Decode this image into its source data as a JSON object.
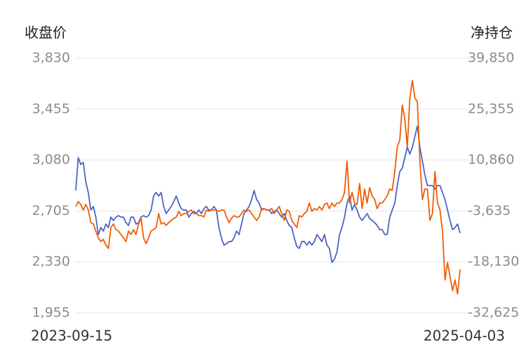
{
  "chart_data": {
    "type": "line",
    "categories": [
      "2023-09-15",
      null,
      null,
      null,
      null,
      null,
      null,
      null,
      null,
      null,
      null,
      null,
      null,
      null,
      null,
      null,
      null,
      null,
      null,
      null,
      null,
      null,
      null,
      null,
      null,
      null,
      null,
      null,
      null,
      null,
      null,
      null,
      null,
      null,
      null,
      null,
      null,
      null,
      null,
      null,
      null,
      null,
      null,
      null,
      null,
      null,
      null,
      null,
      null,
      null,
      null,
      null,
      null,
      null,
      null,
      null,
      null,
      null,
      null,
      null,
      null,
      null,
      null,
      null,
      null,
      null,
      null,
      null,
      null,
      null,
      null,
      null,
      null,
      null,
      null,
      null,
      null,
      null,
      null,
      null,
      null,
      null,
      null,
      null,
      null,
      null,
      null,
      null,
      null,
      null,
      null,
      null,
      null,
      null,
      null,
      null,
      null,
      null,
      null,
      null,
      null,
      null,
      null,
      null,
      null,
      null,
      null,
      null,
      null,
      null,
      null,
      null,
      null,
      null,
      null,
      null,
      null,
      null,
      null,
      null,
      null,
      null,
      null,
      null,
      null,
      null,
      null,
      null,
      null,
      null,
      null,
      null,
      null,
      null,
      null,
      null,
      null,
      null,
      null,
      null,
      null,
      null,
      null,
      null,
      null,
      null,
      null,
      null,
      null,
      null,
      null,
      null,
      null,
      "2025-04-03"
    ],
    "series": [
      {
        "name": "收盘价",
        "color": "#4e62c7",
        "axis": "y",
        "values": [
          2856,
          3098,
          3047,
          3062,
          2918,
          2841,
          2712,
          2738,
          2660,
          2532,
          2583,
          2557,
          2609,
          2583,
          2660,
          2635,
          2660,
          2671,
          2660,
          2660,
          2619,
          2599,
          2660,
          2660,
          2609,
          2619,
          2660,
          2671,
          2660,
          2671,
          2712,
          2815,
          2841,
          2815,
          2841,
          2738,
          2686,
          2712,
          2738,
          2774,
          2815,
          2763,
          2722,
          2712,
          2712,
          2660,
          2686,
          2702,
          2686,
          2712,
          2686,
          2722,
          2738,
          2712,
          2712,
          2738,
          2712,
          2583,
          2506,
          2454,
          2465,
          2480,
          2480,
          2506,
          2557,
          2532,
          2609,
          2686,
          2712,
          2738,
          2789,
          2856,
          2789,
          2763,
          2712,
          2722,
          2712,
          2712,
          2686,
          2702,
          2712,
          2686,
          2660,
          2686,
          2635,
          2599,
          2583,
          2506,
          2444,
          2429,
          2480,
          2480,
          2454,
          2480,
          2454,
          2480,
          2532,
          2506,
          2480,
          2532,
          2454,
          2429,
          2326,
          2351,
          2403,
          2532,
          2583,
          2660,
          2763,
          2815,
          2712,
          2753,
          2712,
          2660,
          2635,
          2660,
          2686,
          2650,
          2635,
          2619,
          2599,
          2568,
          2568,
          2532,
          2532,
          2660,
          2712,
          2763,
          2892,
          2995,
          3021,
          3098,
          3175,
          3124,
          3175,
          3253,
          3330,
          3175,
          3072,
          2969,
          2892,
          2892,
          2892,
          2866,
          2892,
          2892,
          2841,
          2789,
          2712,
          2635,
          2568,
          2583,
          2609,
          2542
        ]
      },
      {
        "name": "净持仓",
        "color": "#f25c05",
        "axis": "y2",
        "values": [
          -2360,
          -966,
          -1762,
          -3355,
          -1762,
          -3355,
          -6939,
          -7337,
          -9328,
          -11319,
          -12315,
          -11717,
          -13310,
          -14306,
          -8333,
          -7337,
          -8930,
          -9328,
          -10324,
          -11319,
          -12315,
          -9328,
          -10324,
          -8930,
          -10324,
          -7337,
          -5744,
          -11319,
          -12912,
          -11319,
          -9328,
          -8930,
          -8333,
          -4351,
          -7337,
          -6939,
          -7735,
          -6939,
          -6342,
          -5744,
          -5346,
          -3753,
          -4948,
          -4351,
          -4351,
          -3753,
          -3355,
          -4351,
          -4351,
          -4948,
          -4948,
          -5346,
          -3355,
          -3753,
          -3355,
          -3355,
          -3355,
          -3753,
          -3355,
          -3355,
          -5346,
          -6939,
          -5744,
          -4948,
          -5346,
          -5346,
          -4351,
          -3355,
          -3753,
          -3355,
          -4351,
          -5346,
          -6342,
          -5346,
          -2957,
          -2957,
          -3355,
          -3355,
          -2957,
          -4351,
          -3355,
          -2360,
          -4351,
          -6342,
          -3355,
          -3753,
          -6342,
          -7337,
          -8333,
          -4948,
          -5346,
          -4351,
          -3753,
          -1364,
          -3753,
          -2957,
          -3355,
          -2360,
          -3355,
          -1762,
          -1364,
          -2957,
          -1364,
          -2360,
          -1364,
          -1364,
          -369,
          1622,
          10582,
          -1364,
          1622,
          -1364,
          -1762,
          4211,
          -2957,
          2618,
          -1364,
          3016,
          627,
          -369,
          -2957,
          -1364,
          -1364,
          -369,
          627,
          2618,
          2220,
          7595,
          14564,
          16555,
          26510,
          22528,
          14564,
          28501,
          33479,
          28501,
          27505,
          10582,
          -369,
          2618,
          2618,
          -6342,
          -4351,
          7595,
          -1364,
          -3355,
          -9328,
          -23265,
          -18288,
          -22270,
          -26252,
          -23265,
          -27247,
          -20279
        ]
      }
    ],
    "ylim": [
      1955,
      3830
    ],
    "yticks": [
      {
        "value": 1955,
        "label": "1,955"
      },
      {
        "value": 2330,
        "label": "2,330"
      },
      {
        "value": 2705,
        "label": "2,705"
      },
      {
        "value": 3080,
        "label": "3,080"
      },
      {
        "value": 3455,
        "label": "3,455"
      },
      {
        "value": 3830,
        "label": "3,830"
      }
    ],
    "y2lim": [
      -32625,
      39850
    ],
    "y2ticks": [
      {
        "value": -32625,
        "label": "-32,625"
      },
      {
        "value": -18130,
        "label": "-18,130"
      },
      {
        "value": -3635,
        "label": "-3,635"
      },
      {
        "value": 10860,
        "label": "10,860"
      },
      {
        "value": 25355,
        "label": "25,355"
      },
      {
        "value": 39850,
        "label": "39,850"
      }
    ],
    "grid": true
  }
}
